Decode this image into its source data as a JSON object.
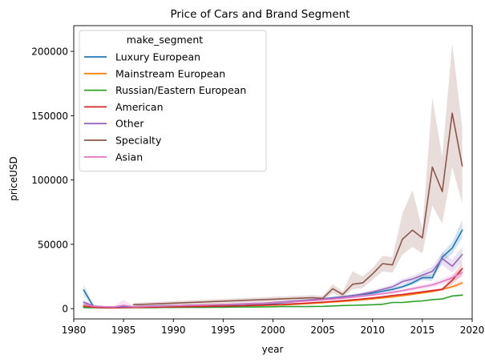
{
  "chart_data": {
    "type": "line",
    "title": "Price of Cars and Brand Segment",
    "xlabel": "year",
    "ylabel": "priceUSD",
    "xlim": [
      1980,
      2020
    ],
    "ylim": [
      -8000,
      220000
    ],
    "x_ticks": [
      1980,
      1985,
      1990,
      1995,
      2000,
      2005,
      2010,
      2015,
      2020
    ],
    "y_ticks": [
      0,
      50000,
      100000,
      150000,
      200000
    ],
    "grid": false,
    "legend": {
      "title": "make_segment",
      "placement": "top-left"
    },
    "series": [
      {
        "name": "Luxury European",
        "color": "#1f77b4",
        "x": [
          1981,
          1982,
          1983,
          1984,
          1985,
          1986,
          1987,
          1988,
          1989,
          1990,
          1991,
          1992,
          1993,
          1994,
          1995,
          1996,
          1997,
          1998,
          1999,
          2000,
          2001,
          2002,
          2003,
          2004,
          2005,
          2006,
          2007,
          2008,
          2009,
          2010,
          2011,
          2012,
          2013,
          2014,
          2015,
          2016,
          2017,
          2018,
          2019
        ],
        "y": [
          14500,
          1500,
          1500,
          1200,
          1500,
          1500,
          1800,
          2000,
          2200,
          2300,
          2400,
          2500,
          2600,
          2700,
          2800,
          3000,
          3200,
          3300,
          3600,
          3900,
          4500,
          5200,
          6000,
          6800,
          7500,
          8500,
          9200,
          10200,
          11000,
          12000,
          13500,
          15000,
          17000,
          20000,
          24000,
          24000,
          40000,
          47000,
          61000
        ],
        "lower": [
          10000,
          1000,
          1000,
          900,
          1100,
          1100,
          1400,
          1600,
          1800,
          1900,
          2000,
          2100,
          2200,
          2300,
          2400,
          2600,
          2800,
          2900,
          3200,
          3500,
          4000,
          4600,
          5400,
          6100,
          6800,
          7800,
          8400,
          9300,
          10000,
          11000,
          12400,
          13800,
          15600,
          18400,
          22000,
          21500,
          36500,
          42500,
          55000
        ],
        "upper": [
          19000,
          2000,
          2000,
          1500,
          1900,
          1900,
          2200,
          2400,
          2600,
          2700,
          2800,
          2900,
          3000,
          3100,
          3200,
          3400,
          3600,
          3700,
          4000,
          4300,
          5000,
          5800,
          6600,
          7500,
          8200,
          9200,
          10000,
          11100,
          12000,
          13000,
          14600,
          16200,
          18400,
          21600,
          26000,
          26500,
          43500,
          51500,
          69000
        ]
      },
      {
        "name": "Mainstream European",
        "color": "#ff7f0e",
        "x": [
          1981,
          1982,
          1983,
          1984,
          1985,
          1986,
          1987,
          1988,
          1989,
          1990,
          1991,
          1992,
          1993,
          1994,
          1995,
          1996,
          1997,
          1998,
          1999,
          2000,
          2001,
          2002,
          2003,
          2004,
          2005,
          2006,
          2007,
          2008,
          2009,
          2010,
          2011,
          2012,
          2013,
          2014,
          2015,
          2016,
          2017,
          2018,
          2019
        ],
        "y": [
          1200,
          900,
          900,
          800,
          900,
          1000,
          1100,
          1200,
          1300,
          1400,
          1500,
          1600,
          1700,
          1800,
          1900,
          2000,
          2100,
          2300,
          2500,
          2700,
          3000,
          3300,
          3700,
          4100,
          4600,
          5100,
          5600,
          6200,
          6800,
          7500,
          8300,
          9100,
          10000,
          11000,
          12200,
          13300,
          15000,
          17000,
          20000
        ],
        "lower": [
          900,
          700,
          700,
          600,
          700,
          800,
          900,
          1000,
          1100,
          1200,
          1300,
          1400,
          1500,
          1600,
          1700,
          1800,
          1900,
          2100,
          2300,
          2500,
          2800,
          3100,
          3500,
          3900,
          4400,
          4900,
          5400,
          5900,
          6500,
          7200,
          8000,
          8800,
          9600,
          10600,
          11700,
          12700,
          14200,
          15800,
          18000
        ],
        "upper": [
          1500,
          1100,
          1100,
          1000,
          1100,
          1200,
          1300,
          1400,
          1500,
          1600,
          1700,
          1800,
          1900,
          2000,
          2100,
          2200,
          2300,
          2500,
          2700,
          2900,
          3200,
          3500,
          3900,
          4300,
          4800,
          5300,
          5800,
          6500,
          7100,
          7800,
          8600,
          9400,
          10400,
          11400,
          12700,
          13900,
          15800,
          18200,
          22000
        ]
      },
      {
        "name": "Russian/Eastern European",
        "color": "#2ca02c",
        "x": [
          1981,
          1982,
          1983,
          1984,
          1985,
          1986,
          1987,
          1988,
          1989,
          1990,
          1991,
          1992,
          1993,
          1994,
          1995,
          1996,
          1997,
          1998,
          1999,
          2000,
          2001,
          2002,
          2003,
          2004,
          2005,
          2006,
          2007,
          2008,
          2009,
          2010,
          2011,
          2012,
          2013,
          2014,
          2015,
          2016,
          2017,
          2018,
          2019
        ],
        "y": [
          800,
          700,
          600,
          600,
          700,
          700,
          800,
          800,
          900,
          900,
          1000,
          1000,
          1000,
          1100,
          1100,
          1200,
          1300,
          1300,
          1400,
          1500,
          1700,
          1600,
          1600,
          1700,
          1800,
          2100,
          2400,
          2600,
          2800,
          3000,
          3400,
          4800,
          4800,
          5500,
          6000,
          7000,
          7500,
          9800,
          10500
        ],
        "lower": [
          700,
          600,
          500,
          500,
          600,
          600,
          700,
          700,
          800,
          800,
          900,
          900,
          900,
          1000,
          1000,
          1100,
          1200,
          1200,
          1300,
          1400,
          1600,
          1500,
          1500,
          1600,
          1700,
          2000,
          2300,
          2500,
          2700,
          2900,
          3200,
          4500,
          4500,
          5200,
          5700,
          6600,
          7000,
          9200,
          9800
        ],
        "upper": [
          900,
          800,
          700,
          700,
          800,
          800,
          900,
          900,
          1000,
          1000,
          1100,
          1100,
          1100,
          1200,
          1200,
          1300,
          1400,
          1400,
          1500,
          1600,
          1800,
          1700,
          1700,
          1800,
          1900,
          2200,
          2500,
          2700,
          2900,
          3100,
          3600,
          5100,
          5100,
          5800,
          6300,
          7400,
          8000,
          10400,
          11200
        ]
      },
      {
        "name": "American",
        "color": "#d62728",
        "x": [
          1981,
          1982,
          1983,
          1984,
          1985,
          1986,
          1987,
          1988,
          1989,
          1990,
          1991,
          1992,
          1993,
          1994,
          1995,
          1996,
          1997,
          1998,
          1999,
          2000,
          2001,
          2002,
          2003,
          2004,
          2005,
          2006,
          2007,
          2008,
          2009,
          2010,
          2011,
          2012,
          2013,
          2014,
          2015,
          2016,
          2017,
          2018,
          2019
        ],
        "y": [
          2000,
          1000,
          800,
          600,
          700,
          900,
          1000,
          1100,
          1300,
          1400,
          1500,
          1600,
          1700,
          1800,
          1900,
          2100,
          2300,
          2500,
          2700,
          3000,
          3300,
          3700,
          4100,
          4600,
          5100,
          5600,
          6200,
          6800,
          7500,
          8300,
          9200,
          10200,
          11000,
          12000,
          13000,
          14000,
          15000,
          22000,
          31000
        ],
        "lower": [
          1500,
          700,
          600,
          400,
          500,
          700,
          800,
          900,
          1100,
          1200,
          1300,
          1400,
          1500,
          1600,
          1700,
          1900,
          2100,
          2300,
          2500,
          2800,
          3100,
          3500,
          3800,
          4300,
          4800,
          5300,
          5800,
          6400,
          7100,
          7800,
          8700,
          9600,
          10300,
          11200,
          12100,
          13000,
          13800,
          19000,
          26000
        ],
        "upper": [
          2500,
          1300,
          1000,
          800,
          900,
          1100,
          1200,
          1300,
          1500,
          1600,
          1700,
          1800,
          1900,
          2000,
          2100,
          2300,
          2500,
          2700,
          2900,
          3200,
          3500,
          3900,
          4400,
          4900,
          5400,
          5900,
          6600,
          7200,
          7900,
          8800,
          9700,
          10800,
          11700,
          12800,
          13900,
          15000,
          16200,
          25000,
          36000
        ]
      },
      {
        "name": "Other",
        "color": "#9467bd",
        "x": [
          1981,
          1982,
          1983,
          1984,
          1985,
          1986,
          1987,
          1988,
          1989,
          1990,
          1991,
          1992,
          1993,
          1994,
          1995,
          1996,
          1997,
          1998,
          1999,
          2000,
          2001,
          2002,
          2003,
          2004,
          2005,
          2006,
          2007,
          2008,
          2009,
          2010,
          2011,
          2012,
          2013,
          2014,
          2015,
          2016,
          2017,
          2018,
          2019
        ],
        "y": [
          5000,
          2000,
          1500,
          1200,
          1300,
          1500,
          1700,
          1900,
          2100,
          2300,
          2500,
          2700,
          2900,
          3100,
          3300,
          3500,
          3800,
          4000,
          4300,
          4700,
          5200,
          5800,
          6400,
          7000,
          7500,
          8200,
          9000,
          10000,
          11500,
          13000,
          15000,
          17000,
          21000,
          23000,
          26000,
          29000,
          39000,
          33000,
          42000
        ],
        "lower": [
          3000,
          1300,
          1000,
          800,
          900,
          1100,
          1300,
          1500,
          1700,
          1900,
          2100,
          2300,
          2500,
          2700,
          2900,
          3100,
          3300,
          3500,
          3800,
          4100,
          4600,
          5100,
          5700,
          6200,
          6700,
          7300,
          8000,
          8900,
          10300,
          11600,
          13400,
          15200,
          18800,
          20600,
          23000,
          25500,
          34000,
          28000,
          36000
        ],
        "upper": [
          7000,
          2700,
          2000,
          1600,
          1700,
          1900,
          2100,
          2300,
          2500,
          2700,
          2900,
          3100,
          3300,
          3500,
          3700,
          3900,
          4300,
          4500,
          4800,
          5300,
          5800,
          6500,
          7100,
          7800,
          8300,
          9100,
          10000,
          11100,
          12700,
          14400,
          16600,
          18800,
          23200,
          25400,
          29000,
          32500,
          44000,
          38000,
          48000
        ]
      },
      {
        "name": "Specialty",
        "color": "#8c564b",
        "x": [
          1986,
          2004,
          2005,
          2006,
          2007,
          2008,
          2009,
          2010,
          2011,
          2012,
          2013,
          2014,
          2015,
          2016,
          2017,
          2018,
          2019
        ],
        "y": [
          3000,
          8500,
          8000,
          15500,
          11000,
          19000,
          20000,
          27000,
          35000,
          34000,
          54000,
          61000,
          55000,
          110000,
          91000,
          152000,
          111000
        ],
        "lower": [
          1500,
          6500,
          6000,
          12000,
          8500,
          15000,
          16000,
          22500,
          29000,
          28000,
          42000,
          48000,
          43000,
          80000,
          66000,
          110000,
          82000
        ],
        "upper": [
          4500,
          10500,
          10000,
          19000,
          13500,
          29000,
          25000,
          31500,
          41000,
          40000,
          74000,
          92000,
          62000,
          164000,
          118000,
          206000,
          141000
        ]
      },
      {
        "name": "Asian",
        "color": "#e377c2",
        "x": [
          1981,
          1982,
          1983,
          1984,
          1985,
          1986,
          1987,
          1988,
          1989,
          1990,
          1991,
          1992,
          1993,
          1994,
          1995,
          1996,
          1997,
          1998,
          1999,
          2000,
          2001,
          2002,
          2003,
          2004,
          2005,
          2006,
          2007,
          2008,
          2009,
          2010,
          2011,
          2012,
          2013,
          2014,
          2015,
          2016,
          2017,
          2018,
          2019
        ],
        "y": [
          3500,
          1800,
          1500,
          1300,
          2500,
          1400,
          1600,
          1800,
          2000,
          2200,
          2400,
          2600,
          2800,
          3000,
          3200,
          3400,
          3600,
          3800,
          4100,
          4400,
          4800,
          5200,
          5700,
          6200,
          6800,
          7400,
          8100,
          8900,
          9700,
          10600,
          11600,
          12700,
          14000,
          15500,
          17000,
          18500,
          21000,
          24000,
          28000
        ],
        "lower": [
          2000,
          1100,
          900,
          800,
          900,
          900,
          1100,
          1300,
          1500,
          1700,
          1900,
          2100,
          2300,
          2500,
          2700,
          2900,
          3100,
          3300,
          3600,
          3900,
          4300,
          4700,
          5100,
          5600,
          6200,
          6700,
          7400,
          8100,
          8800,
          9600,
          10500,
          11500,
          12700,
          14000,
          15400,
          16700,
          18800,
          21300,
          24500
        ],
        "upper": [
          5500,
          2500,
          2100,
          1800,
          7000,
          1900,
          2100,
          2300,
          2500,
          2700,
          2900,
          3100,
          3300,
          3500,
          3700,
          3900,
          4100,
          4300,
          4600,
          4900,
          5300,
          5700,
          6300,
          6800,
          7400,
          8100,
          8800,
          9700,
          10600,
          11600,
          12700,
          13900,
          15300,
          17000,
          18600,
          20300,
          23200,
          26700,
          31500
        ]
      }
    ]
  }
}
